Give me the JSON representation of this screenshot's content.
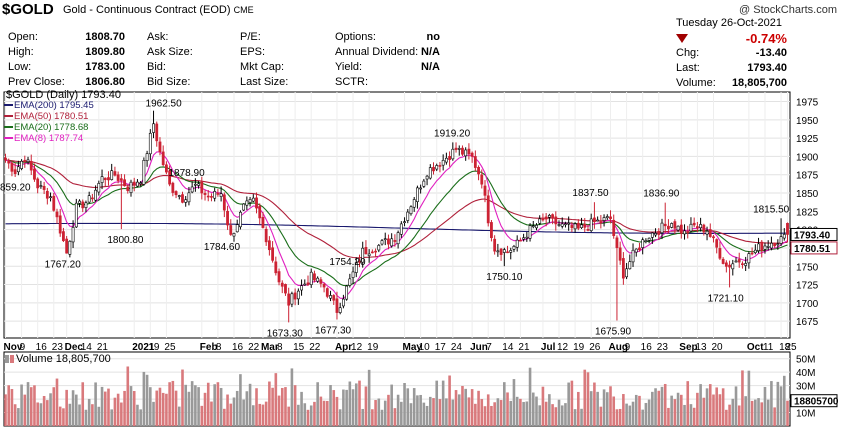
{
  "header": {
    "symbol": "$GOLD",
    "description": "Gold - Continuous Contract (EOD)",
    "exchange": "CME",
    "watermark": "@ StockCharts.com"
  },
  "quote": {
    "rows": [
      {
        "open_l": "Open:",
        "open_v": "1808.70",
        "ask_l": "Ask:",
        "pe_l": "P/E:",
        "opt_l": "Options:",
        "opt_v": "no"
      },
      {
        "open_l": "High:",
        "open_v": "1809.80",
        "ask_l": "Ask Size:",
        "pe_l": "EPS:",
        "opt_l": "Annual Dividend:",
        "opt_v": "N/A"
      },
      {
        "open_l": "Low:",
        "open_v": "1783.00",
        "ask_l": "Bid:",
        "pe_l": "Mkt Cap:",
        "opt_l": "Yield:",
        "opt_v": "N/A"
      },
      {
        "open_l": "Prev Close:",
        "open_v": "1806.80",
        "ask_l": "Bid Size:",
        "pe_l": "Last Size:",
        "opt_l": "SCTR:",
        "opt_v": ""
      }
    ],
    "date": "Tuesday 26-Oct-2021",
    "change_pct": "-0.74%",
    "chg_label": "Chg:",
    "chg_value": "-13.40",
    "last_label": "Last:",
    "last_value": "1793.40",
    "volume_label": "Volume:",
    "volume_value": "18,805,700"
  },
  "colors": {
    "up": "#ffffff",
    "down": "#cc2233",
    "candle_edge": "#000000",
    "ema200": "#1a1a6e",
    "ema50": "#b0203a",
    "ema20": "#1a6e1a",
    "ema8": "#e020c0",
    "vol_up": "#999999",
    "vol_down": "#d9797c",
    "grid": "#e2e2e2"
  },
  "chart_data": [
    {
      "type": "candlestick",
      "title": "$GOLD (Daily) 1793.40",
      "legend": [
        {
          "name": "EMA(200) 1795.45",
          "color": "#1a1a6e"
        },
        {
          "name": "EMA(50) 1780.51",
          "color": "#b0203a"
        },
        {
          "name": "EMA(20) 1778.68",
          "color": "#1a6e1a"
        },
        {
          "name": "EMA(8) 1787.74",
          "color": "#e020c0"
        }
      ],
      "legend_placement": "top-left",
      "y_ticks": [
        1675,
        1700,
        1725,
        1750,
        1775,
        1800,
        1825,
        1850,
        1875,
        1900,
        1925,
        1950,
        1975
      ],
      "ylim": [
        1652,
        1988
      ],
      "x_tick_labels": [
        "Nov",
        "9",
        "16",
        "23",
        "Dec",
        "14",
        "21",
        "2021",
        "19",
        "25",
        "Feb",
        "8",
        "16",
        "22",
        "Mar",
        "8",
        "15",
        "22",
        "Apr",
        "12",
        "19",
        "May",
        "10",
        "17",
        "24",
        "Jun",
        "7",
        "14",
        "21",
        "Jul",
        "12",
        "19",
        "26",
        "Aug",
        "9",
        "16",
        "23",
        "Sep",
        "13",
        "20",
        "Oct",
        "11",
        "18",
        "25"
      ],
      "x_tick_bold": [
        "Nov",
        "Dec",
        "2021",
        "Feb",
        "Mar",
        "Apr",
        "May",
        "Jun",
        "Jul",
        "Aug",
        "Sep",
        "Oct"
      ],
      "price_labels": [
        "1962.50",
        "1878.90",
        "1800.80",
        "1784.60",
        "1767.20",
        "859.20",
        "1673.30",
        "1677.30",
        "1754.20",
        "1919.20",
        "1750.10",
        "1837.50",
        "1836.90",
        "1675.90",
        "1721.10",
        "1815.50"
      ],
      "last_tag": "1793.40",
      "ema50_tag": "1780.51",
      "anchors": [
        {
          "d": 0,
          "p": 1895
        },
        {
          "d": 3,
          "p": 1880
        },
        {
          "d": 6,
          "p": 1900
        },
        {
          "d": 10,
          "p": 1860
        },
        {
          "d": 14,
          "p": 1845
        },
        {
          "d": 17,
          "p": 1800
        },
        {
          "d": 19,
          "p": 1768
        },
        {
          "d": 22,
          "p": 1830
        },
        {
          "d": 26,
          "p": 1840
        },
        {
          "d": 30,
          "p": 1870
        },
        {
          "d": 34,
          "p": 1875
        },
        {
          "d": 38,
          "p": 1858
        },
        {
          "d": 42,
          "p": 1870
        },
        {
          "d": 46,
          "p": 1945
        },
        {
          "d": 48,
          "p": 1905
        },
        {
          "d": 51,
          "p": 1860
        },
        {
          "d": 55,
          "p": 1843
        },
        {
          "d": 59,
          "p": 1860
        },
        {
          "d": 63,
          "p": 1845
        },
        {
          "d": 67,
          "p": 1850
        },
        {
          "d": 70,
          "p": 1790
        },
        {
          "d": 74,
          "p": 1830
        },
        {
          "d": 77,
          "p": 1838
        },
        {
          "d": 81,
          "p": 1790
        },
        {
          "d": 85,
          "p": 1730
        },
        {
          "d": 88,
          "p": 1700
        },
        {
          "d": 91,
          "p": 1718
        },
        {
          "d": 95,
          "p": 1735
        },
        {
          "d": 99,
          "p": 1722
        },
        {
          "d": 103,
          "p": 1690
        },
        {
          "d": 107,
          "p": 1730
        },
        {
          "d": 111,
          "p": 1770
        },
        {
          "d": 116,
          "p": 1778
        },
        {
          "d": 121,
          "p": 1790
        },
        {
          "d": 126,
          "p": 1835
        },
        {
          "d": 131,
          "p": 1880
        },
        {
          "d": 136,
          "p": 1895
        },
        {
          "d": 140,
          "p": 1910
        },
        {
          "d": 145,
          "p": 1898
        },
        {
          "d": 148,
          "p": 1868
        },
        {
          "d": 150,
          "p": 1815
        },
        {
          "d": 152,
          "p": 1775
        },
        {
          "d": 156,
          "p": 1770
        },
        {
          "d": 159,
          "p": 1780
        },
        {
          "d": 163,
          "p": 1800
        },
        {
          "d": 168,
          "p": 1815
        },
        {
          "d": 173,
          "p": 1805
        },
        {
          "d": 178,
          "p": 1800
        },
        {
          "d": 183,
          "p": 1810
        },
        {
          "d": 188,
          "p": 1815
        },
        {
          "d": 190,
          "p": 1770
        },
        {
          "d": 192,
          "p": 1740
        },
        {
          "d": 195,
          "p": 1765
        },
        {
          "d": 199,
          "p": 1790
        },
        {
          "d": 203,
          "p": 1800
        },
        {
          "d": 207,
          "p": 1810
        },
        {
          "d": 211,
          "p": 1795
        },
        {
          "d": 214,
          "p": 1805
        },
        {
          "d": 218,
          "p": 1800
        },
        {
          "d": 221,
          "p": 1775
        },
        {
          "d": 224,
          "p": 1750
        },
        {
          "d": 227,
          "p": 1757
        },
        {
          "d": 230,
          "p": 1760
        },
        {
          "d": 234,
          "p": 1775
        },
        {
          "d": 238,
          "p": 1783
        },
        {
          "d": 243,
          "p": 1790
        }
      ],
      "spikes": [
        {
          "d": 46,
          "h": 1962.5
        },
        {
          "d": 19,
          "l": 1767.2
        },
        {
          "d": 88,
          "l": 1673.3
        },
        {
          "d": 103,
          "l": 1677.3
        },
        {
          "d": 140,
          "h": 1919.2
        },
        {
          "d": 155,
          "l": 1750.1
        },
        {
          "d": 183,
          "h": 1837.5
        },
        {
          "d": 190,
          "l": 1675.9
        },
        {
          "d": 205,
          "h": 1836.9
        },
        {
          "d": 225,
          "l": 1721.1
        },
        {
          "d": 241,
          "h": 1815.5
        },
        {
          "d": 36,
          "l": 1800.8
        }
      ]
    },
    {
      "type": "bar",
      "title": "Volume 18,805,700",
      "y_ticks": [
        "10M",
        "20M",
        "30M",
        "40M",
        "50M"
      ],
      "ylim": [
        0,
        55000000
      ],
      "last_tag": "18805700"
    }
  ]
}
